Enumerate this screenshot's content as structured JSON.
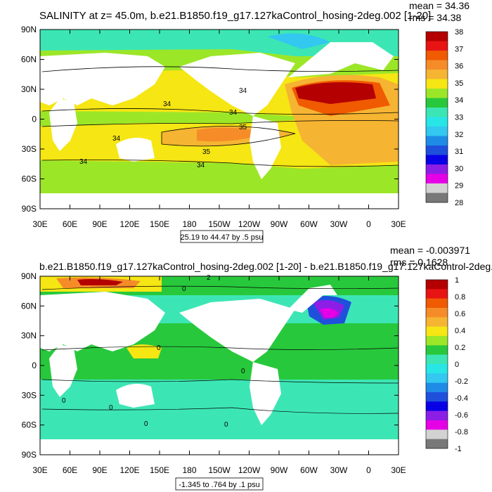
{
  "chart_data": [
    {
      "type": "heatmap",
      "title": "SALINITY at z=  45.0m, b.e21.B1850.f19_g17.127kaControl_hosing-2deg.002 [1-20]",
      "stats": {
        "mean": "mean = 34.36",
        "rms": "rms = 34.38"
      },
      "range_label": "25.19 to 44.47 by .5 psu",
      "x_ticks": [
        "30E",
        "60E",
        "90E",
        "120E",
        "150E",
        "180",
        "150W",
        "120W",
        "90W",
        "60W",
        "30W",
        "0",
        "30E"
      ],
      "y_ticks": [
        "90N",
        "60N",
        "30N",
        "0",
        "30S",
        "60S",
        "90S"
      ],
      "xlim": [
        30,
        390
      ],
      "ylim": [
        -90,
        90
      ],
      "colorbar": {
        "labels": [
          "38",
          "37",
          "36",
          "35",
          "34",
          "33",
          "32",
          "31",
          "30",
          "29",
          "28"
        ],
        "colors": [
          "#b40000",
          "#e81414",
          "#f05a00",
          "#f58c28",
          "#f5b432",
          "#f5e614",
          "#9ce628",
          "#28c83c",
          "#3ce6b4",
          "#28e6e6",
          "#32c8f0",
          "#1e8ce6",
          "#1e50dc",
          "#0a00e6",
          "#8c1ee6",
          "#e600e6",
          "#d2d2d2",
          "#787878"
        ]
      },
      "contour_labels": [
        "34",
        "34",
        "34",
        "34",
        "35",
        "34",
        "35",
        "34"
      ]
    },
    {
      "type": "heatmap",
      "title": "b.e21.B1850.f19_g17.127kaControl_hosing-2deg.002 [1-20] - b.e21.B1850.f19_g17.127kaControl-2deg.",
      "stats": {
        "mean": "mean = -0.003971",
        "rms": "rms = 0.1628"
      },
      "range_label": "-1.345 to .764 by .1 psu",
      "x_ticks": [
        "30E",
        "60E",
        "90E",
        "120E",
        "150E",
        "180",
        "150W",
        "120W",
        "90W",
        "60W",
        "30W",
        "0",
        "30E"
      ],
      "y_ticks": [
        "90N",
        "60N",
        "30N",
        "0",
        "30S",
        "60S",
        "90S"
      ],
      "xlim": [
        30,
        390
      ],
      "ylim": [
        -90,
        90
      ],
      "colorbar": {
        "labels": [
          "1",
          "0.8",
          "0.6",
          "0.4",
          "0.2",
          "0",
          "-0.2",
          "-0.4",
          "-0.6",
          "-0.8",
          "-1"
        ],
        "colors": [
          "#b40000",
          "#e81414",
          "#f05a00",
          "#f58c28",
          "#f5b432",
          "#f5e614",
          "#9ce628",
          "#28c83c",
          "#3ce6b4",
          "#28e6e6",
          "#32c8f0",
          "#1e8ce6",
          "#1e50dc",
          "#0a00e6",
          "#8c1ee6",
          "#e600e6",
          "#d2d2d2",
          "#787878"
        ]
      },
      "contour_labels": [
        "2",
        "0",
        "0",
        "0",
        "0",
        "0",
        "0",
        "0"
      ]
    }
  ]
}
